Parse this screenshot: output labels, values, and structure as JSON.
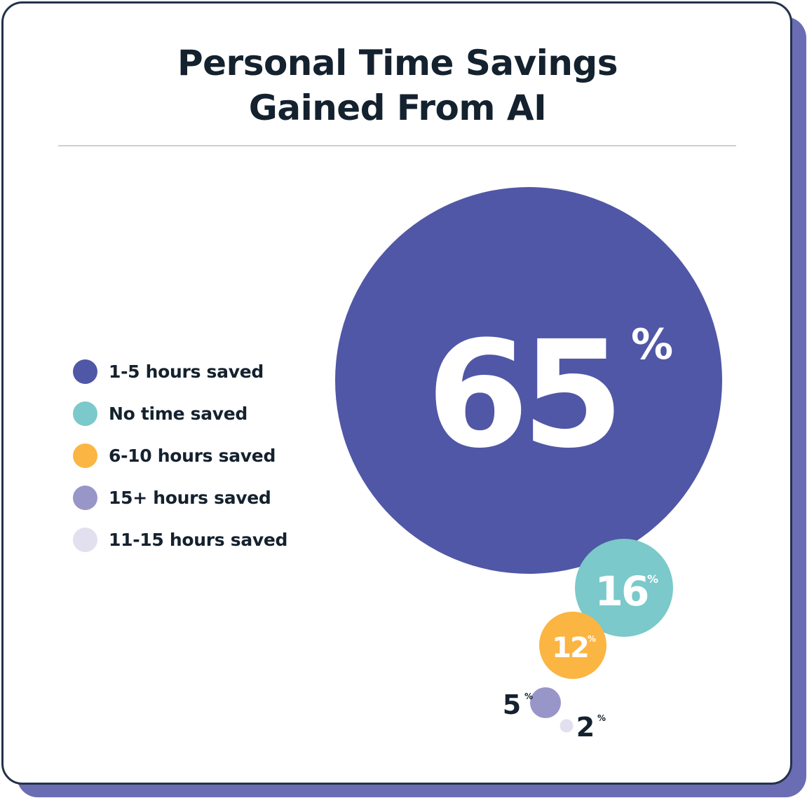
{
  "chart_data": {
    "type": "bubble",
    "title": "Personal Time Savings Gained From AI",
    "title_lines": [
      "Personal Time Savings",
      "Gained From AI"
    ],
    "unit": "%",
    "legend_position": "left",
    "series": [
      {
        "name": "1-5 hours saved",
        "value": 65,
        "label": "65",
        "color": "#5057a6",
        "label_color": "#ffffff",
        "label_inside": true
      },
      {
        "name": "No time saved",
        "value": 16,
        "label": "16",
        "color": "#7bc9ca",
        "label_color": "#ffffff",
        "label_inside": true
      },
      {
        "name": "6-10 hours saved",
        "value": 12,
        "label": "12",
        "color": "#fbb542",
        "label_color": "#ffffff",
        "label_inside": true
      },
      {
        "name": "15+ hours saved",
        "value": 5,
        "label": "5",
        "color": "#9896c8",
        "label_color": "#14212e",
        "label_inside": false
      },
      {
        "name": "11-15 hours saved",
        "value": 2,
        "label": "2",
        "color": "#e2e0ef",
        "label_color": "#14212e",
        "label_inside": false
      }
    ]
  }
}
